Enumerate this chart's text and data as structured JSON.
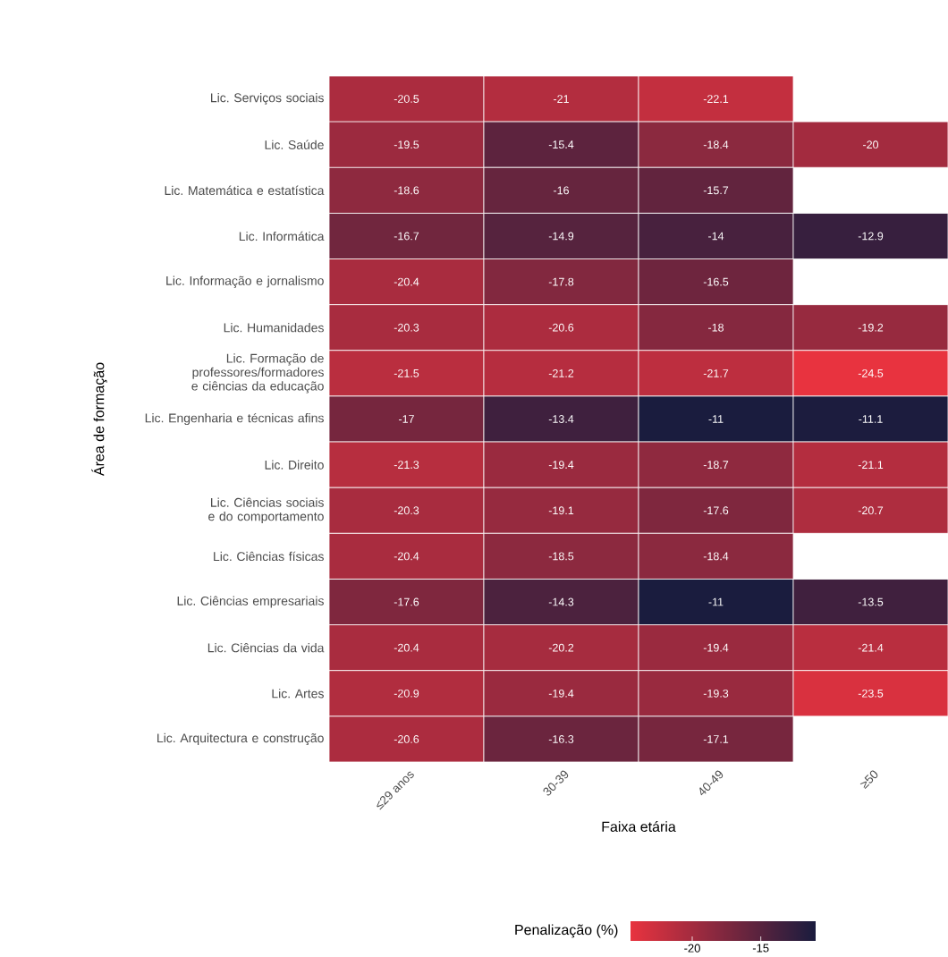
{
  "chart_data": {
    "type": "heatmap",
    "xlabel": "Faixa etária",
    "ylabel": "Área de formação",
    "clabel": "Penalização (%)",
    "categories": [
      "≤29 anos",
      "30-39",
      "40-49",
      "≥50"
    ],
    "y_categories": [
      "Lic. Serviços sociais",
      "Lic. Saúde",
      "Lic. Matemática e estatística",
      "Lic. Informática",
      "Lic. Informação e jornalismo",
      "Lic. Humanidades",
      "Lic. Formação de professores/formadores e ciências da educação",
      "Lic. Engenharia e técnicas afins",
      "Lic. Direito",
      "Lic. Ciências sociais e do comportamento",
      "Lic. Ciências físicas",
      "Lic. Ciências empresariais",
      "Lic. Ciências da vida",
      "Lic. Artes",
      "Lic. Arquitectura e construção"
    ],
    "cells": [
      [
        -20.5,
        -21,
        -22.1,
        null
      ],
      [
        -19.5,
        -15.4,
        -18.4,
        -20
      ],
      [
        -18.6,
        -16,
        -15.7,
        null
      ],
      [
        -16.7,
        -14.9,
        -14,
        -12.9
      ],
      [
        -20.4,
        -17.8,
        -16.5,
        null
      ],
      [
        -20.3,
        -20.6,
        -18,
        -19.2
      ],
      [
        -21.5,
        -21.2,
        -21.7,
        -24.5
      ],
      [
        -17,
        -13.4,
        -11,
        -11.1
      ],
      [
        -21.3,
        -19.4,
        -18.7,
        -21.1
      ],
      [
        -20.3,
        -19.1,
        -17.6,
        -20.7
      ],
      [
        -20.4,
        -18.5,
        -18.4,
        null
      ],
      [
        -17.6,
        -14.3,
        -11,
        -13.5
      ],
      [
        -20.4,
        -20.2,
        -19.4,
        -21.4
      ],
      [
        -20.9,
        -19.4,
        -19.3,
        -23.5
      ],
      [
        -20.6,
        -16.3,
        -17.1,
        null
      ]
    ],
    "data_labels": true,
    "colors": [
      "#e8333f",
      "#1a1c3e"
    ],
    "clim": [
      -24.5,
      -11
    ],
    "cticks": [
      -20,
      -15
    ]
  }
}
